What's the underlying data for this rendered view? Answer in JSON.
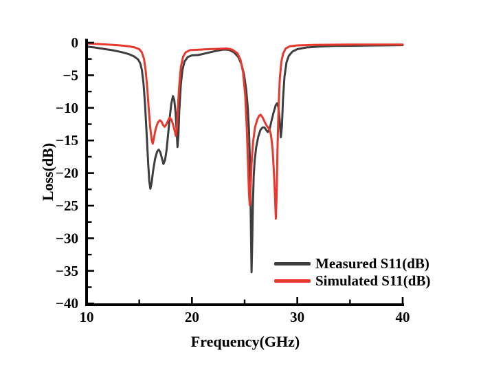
{
  "chart_data": {
    "type": "line",
    "title": "",
    "xlabel": "Frequency(GHz)",
    "ylabel": "Loss(dB)",
    "xlim": [
      10,
      40
    ],
    "ylim": [
      -40,
      0
    ],
    "grid": false,
    "background": "#ffffff",
    "axis_color": "#000000",
    "x_axis": {
      "major_ticks": [
        10,
        20,
        30,
        40
      ],
      "minor_ticks": [
        15,
        25,
        35
      ],
      "tick_labels": [
        "10",
        "20",
        "30",
        "40"
      ]
    },
    "y_axis": {
      "major_ticks": [
        0,
        -5,
        -10,
        -15,
        -20,
        -25,
        -30,
        -35,
        -40
      ],
      "minor_ticks": [
        -2.5,
        -7.5,
        -12.5,
        -17.5,
        -22.5,
        -27.5,
        -32.5,
        -37.5
      ],
      "tick_labels": [
        "0",
        "−5",
        "−10",
        "−15",
        "−20",
        "−25",
        "−30",
        "−35",
        "−40"
      ]
    },
    "legend": {
      "position": "inside-lower-right",
      "entries": [
        {
          "label": "Measured S11(dB)",
          "color": "#3e3e3e"
        },
        {
          "label": "Simulated S11(dB)",
          "color": "#e8382e"
        }
      ]
    },
    "series": [
      {
        "name": "Measured S11(dB)",
        "color": "#3e3e3e",
        "points": [
          [
            10,
            -0.6
          ],
          [
            10.8,
            -0.75
          ],
          [
            11.6,
            -0.95
          ],
          [
            12.4,
            -1.15
          ],
          [
            13.2,
            -1.4
          ],
          [
            14,
            -1.75
          ],
          [
            14.5,
            -2.1
          ],
          [
            14.9,
            -2.6
          ],
          [
            15.1,
            -3.2
          ],
          [
            15.25,
            -4.2
          ],
          [
            15.4,
            -6.2
          ],
          [
            15.55,
            -9.5
          ],
          [
            15.7,
            -14
          ],
          [
            15.85,
            -18.6
          ],
          [
            15.95,
            -21.2
          ],
          [
            16.05,
            -22.4
          ],
          [
            16.18,
            -21.4
          ],
          [
            16.3,
            -19.8
          ],
          [
            16.5,
            -17.8
          ],
          [
            16.7,
            -16.7
          ],
          [
            16.85,
            -16.4
          ],
          [
            17,
            -16.8
          ],
          [
            17.15,
            -17.7
          ],
          [
            17.3,
            -18.6
          ],
          [
            17.45,
            -18
          ],
          [
            17.6,
            -16.4
          ],
          [
            17.75,
            -13.9
          ],
          [
            17.9,
            -11.4
          ],
          [
            18.05,
            -9.3
          ],
          [
            18.2,
            -8.2
          ],
          [
            18.32,
            -8.8
          ],
          [
            18.45,
            -10.8
          ],
          [
            18.55,
            -13.6
          ],
          [
            18.63,
            -16
          ],
          [
            18.71,
            -14.3
          ],
          [
            18.8,
            -10.5
          ],
          [
            18.95,
            -6.4
          ],
          [
            19.1,
            -4.2
          ],
          [
            19.3,
            -2.9
          ],
          [
            19.6,
            -2.2
          ],
          [
            20,
            -1.95
          ],
          [
            20.6,
            -1.9
          ],
          [
            21.4,
            -1.6
          ],
          [
            22.2,
            -1.3
          ],
          [
            23,
            -1.05
          ],
          [
            23.5,
            -1.1
          ],
          [
            24,
            -1.5
          ],
          [
            24.4,
            -2.2
          ],
          [
            24.7,
            -3.3
          ],
          [
            24.95,
            -4.9
          ],
          [
            25.15,
            -7.2
          ],
          [
            25.3,
            -10
          ],
          [
            25.42,
            -13.5
          ],
          [
            25.5,
            -18
          ],
          [
            25.56,
            -24
          ],
          [
            25.62,
            -31
          ],
          [
            25.66,
            -35.2
          ],
          [
            25.72,
            -31
          ],
          [
            25.78,
            -25
          ],
          [
            25.86,
            -20.5
          ],
          [
            25.96,
            -18
          ],
          [
            26.1,
            -16
          ],
          [
            26.3,
            -14.4
          ],
          [
            26.5,
            -13.4
          ],
          [
            26.7,
            -13
          ],
          [
            26.88,
            -13
          ],
          [
            27.05,
            -13.4
          ],
          [
            27.2,
            -13.7
          ],
          [
            27.38,
            -13.2
          ],
          [
            27.55,
            -12
          ],
          [
            27.75,
            -10.7
          ],
          [
            27.95,
            -9.6
          ],
          [
            28.08,
            -9.3
          ],
          [
            28.2,
            -9.9
          ],
          [
            28.32,
            -11.7
          ],
          [
            28.44,
            -14.5
          ],
          [
            28.54,
            -12.8
          ],
          [
            28.64,
            -8.8
          ],
          [
            28.78,
            -5.2
          ],
          [
            28.98,
            -3
          ],
          [
            29.2,
            -2
          ],
          [
            29.55,
            -1.35
          ],
          [
            30,
            -1
          ],
          [
            30.8,
            -0.75
          ],
          [
            32,
            -0.6
          ],
          [
            33.5,
            -0.5
          ],
          [
            35,
            -0.48
          ],
          [
            36.5,
            -0.45
          ],
          [
            38,
            -0.42
          ],
          [
            40,
            -0.38
          ]
        ]
      },
      {
        "name": "Simulated S11(dB)",
        "color": "#e8382e",
        "points": [
          [
            10,
            -0.12
          ],
          [
            11,
            -0.2
          ],
          [
            12,
            -0.28
          ],
          [
            13,
            -0.4
          ],
          [
            14,
            -0.55
          ],
          [
            14.6,
            -0.75
          ],
          [
            15,
            -1
          ],
          [
            15.25,
            -1.5
          ],
          [
            15.45,
            -2.5
          ],
          [
            15.6,
            -4.2
          ],
          [
            15.75,
            -6.8
          ],
          [
            15.9,
            -10.2
          ],
          [
            16.05,
            -13.2
          ],
          [
            16.18,
            -14.9
          ],
          [
            16.28,
            -15.5
          ],
          [
            16.4,
            -14.6
          ],
          [
            16.55,
            -13.3
          ],
          [
            16.75,
            -12.3
          ],
          [
            16.95,
            -11.9
          ],
          [
            17.1,
            -12.1
          ],
          [
            17.25,
            -12.6
          ],
          [
            17.4,
            -12.9
          ],
          [
            17.55,
            -12.6
          ],
          [
            17.72,
            -12
          ],
          [
            17.88,
            -11.5
          ],
          [
            18.05,
            -11.8
          ],
          [
            18.2,
            -12.5
          ],
          [
            18.35,
            -13.4
          ],
          [
            18.47,
            -14.3
          ],
          [
            18.57,
            -13
          ],
          [
            18.67,
            -10
          ],
          [
            18.8,
            -6.5
          ],
          [
            18.95,
            -3.8
          ],
          [
            19.15,
            -2.2
          ],
          [
            19.4,
            -1.5
          ],
          [
            19.8,
            -1.15
          ],
          [
            20.5,
            -1.1
          ],
          [
            21.5,
            -1
          ],
          [
            22.5,
            -0.95
          ],
          [
            23.3,
            -0.9
          ],
          [
            23.8,
            -1.05
          ],
          [
            24.3,
            -1.6
          ],
          [
            24.6,
            -2.6
          ],
          [
            24.85,
            -4.5
          ],
          [
            25.05,
            -8
          ],
          [
            25.2,
            -13
          ],
          [
            25.32,
            -18.5
          ],
          [
            25.42,
            -23.2
          ],
          [
            25.48,
            -24.9
          ],
          [
            25.56,
            -22.5
          ],
          [
            25.66,
            -18.5
          ],
          [
            25.8,
            -15.2
          ],
          [
            26,
            -12.9
          ],
          [
            26.2,
            -11.8
          ],
          [
            26.38,
            -11.2
          ],
          [
            26.52,
            -11.05
          ],
          [
            26.72,
            -11.5
          ],
          [
            26.92,
            -12.2
          ],
          [
            27.12,
            -12.8
          ],
          [
            27.32,
            -13.2
          ],
          [
            27.5,
            -14.1
          ],
          [
            27.65,
            -16.2
          ],
          [
            27.78,
            -19.8
          ],
          [
            27.88,
            -23.5
          ],
          [
            27.96,
            -27
          ],
          [
            28.04,
            -23.5
          ],
          [
            28.12,
            -16.5
          ],
          [
            28.22,
            -10
          ],
          [
            28.34,
            -5.5
          ],
          [
            28.48,
            -3
          ],
          [
            28.65,
            -1.7
          ],
          [
            28.9,
            -0.9
          ],
          [
            29.3,
            -0.55
          ],
          [
            30,
            -0.42
          ],
          [
            31.5,
            -0.35
          ],
          [
            33,
            -0.32
          ],
          [
            35,
            -0.3
          ],
          [
            37,
            -0.3
          ],
          [
            38.5,
            -0.3
          ],
          [
            40,
            -0.28
          ]
        ]
      }
    ]
  }
}
